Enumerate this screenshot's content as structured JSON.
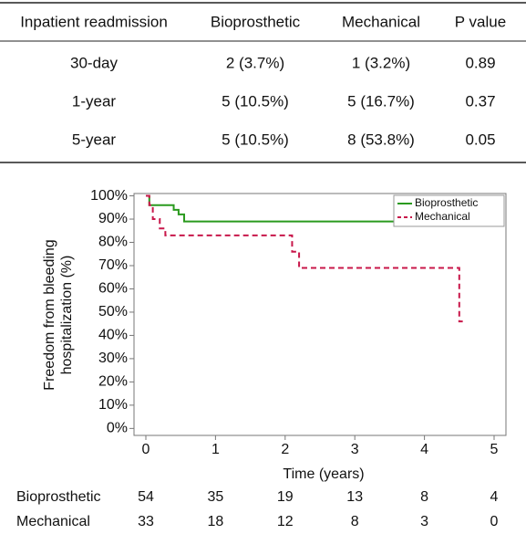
{
  "table": {
    "header": [
      "Inpatient readmission",
      "Bioprosthetic",
      "Mechanical",
      "P value"
    ],
    "rows": [
      [
        "30-day",
        "2 (3.7%)",
        "1 (3.2%)",
        "0.89"
      ],
      [
        "1-year",
        "5 (10.5%)",
        "5 (16.7%)",
        "0.37"
      ],
      [
        "5-year",
        "5 (10.5%)",
        "8 (53.8%)",
        "0.05"
      ]
    ]
  },
  "chart_data": {
    "type": "line",
    "ylabel_lines": [
      "Freedom from bleeding",
      "hospitalization (%)"
    ],
    "xlabel": "Time (years)",
    "xlim": [
      -0.17,
      5.17
    ],
    "xticks": [
      0,
      1,
      2,
      3,
      4,
      5
    ],
    "ylim": [
      -3,
      101
    ],
    "yticks": [
      {
        "value": 0,
        "label": "0%"
      },
      {
        "value": 10,
        "label": "10%"
      },
      {
        "value": 20,
        "label": "20%"
      },
      {
        "value": 30,
        "label": "30%"
      },
      {
        "value": 40,
        "label": "40%"
      },
      {
        "value": 50,
        "label": "50%"
      },
      {
        "value": 60,
        "label": "60%"
      },
      {
        "value": 70,
        "label": "70%"
      },
      {
        "value": 80,
        "label": "80%"
      },
      {
        "value": 90,
        "label": "90%"
      },
      {
        "value": 100,
        "label": "100%"
      }
    ],
    "legend": "upper right",
    "series": [
      {
        "name": "Bioprosthetic",
        "color": "#2a9a1e",
        "dashed": false,
        "x": [
          0,
          0.05,
          0.05,
          0.4,
          0.4,
          0.47,
          0.47,
          0.55,
          0.55,
          4.55
        ],
        "values": [
          100,
          100,
          96,
          96,
          94,
          94,
          92,
          92,
          89,
          89
        ]
      },
      {
        "name": "Mechanical",
        "color": "#c8174a",
        "dashed": true,
        "x": [
          0,
          0.05,
          0.05,
          0.1,
          0.1,
          0.2,
          0.2,
          0.28,
          0.28,
          2.1,
          2.1,
          2.2,
          2.2,
          4.5,
          4.5,
          4.55
        ],
        "values": [
          100,
          100,
          96,
          96,
          90,
          90,
          86,
          86,
          83,
          83,
          76,
          76,
          69,
          69,
          46,
          46
        ]
      }
    ],
    "risk_table": [
      {
        "name": "Bioprosthetic",
        "counts": [
          "54",
          "35",
          "19",
          "13",
          "8",
          "4"
        ]
      },
      {
        "name": "Mechanical",
        "counts": [
          "33",
          "18",
          "12",
          "8",
          "3",
          "0"
        ]
      }
    ]
  }
}
